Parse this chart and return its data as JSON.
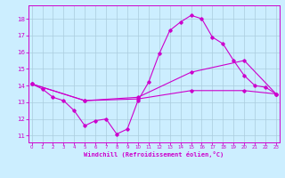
{
  "xlabel": "Windchill (Refroidissement éolien,°C)",
  "bg_color": "#cceeff",
  "grid_color": "#aaccdd",
  "line_color": "#cc00cc",
  "x_ticks": [
    0,
    1,
    2,
    3,
    4,
    5,
    6,
    7,
    8,
    9,
    10,
    11,
    12,
    13,
    14,
    15,
    16,
    17,
    18,
    19,
    20,
    21,
    22,
    23
  ],
  "y_ticks": [
    11,
    12,
    13,
    14,
    15,
    16,
    17,
    18
  ],
  "ylim": [
    10.6,
    18.8
  ],
  "xlim": [
    -0.3,
    23.3
  ],
  "line1_x": [
    0,
    1,
    2,
    3,
    4,
    5,
    6,
    7,
    8,
    9,
    10,
    11,
    12,
    13,
    14,
    15,
    16,
    17,
    18,
    19,
    20,
    21,
    22,
    23
  ],
  "line1_y": [
    14.1,
    13.8,
    13.3,
    13.1,
    12.5,
    11.6,
    11.9,
    12.0,
    11.1,
    11.4,
    13.1,
    14.2,
    15.9,
    17.3,
    17.8,
    18.2,
    18.0,
    16.9,
    16.5,
    15.5,
    14.6,
    14.0,
    13.9,
    13.5
  ],
  "line2_x": [
    0,
    5,
    10,
    15,
    20,
    23
  ],
  "line2_y": [
    14.1,
    13.1,
    13.3,
    14.8,
    15.5,
    13.5
  ],
  "line3_x": [
    0,
    5,
    10,
    15,
    20,
    23
  ],
  "line3_y": [
    14.1,
    13.1,
    13.2,
    13.7,
    13.7,
    13.5
  ]
}
